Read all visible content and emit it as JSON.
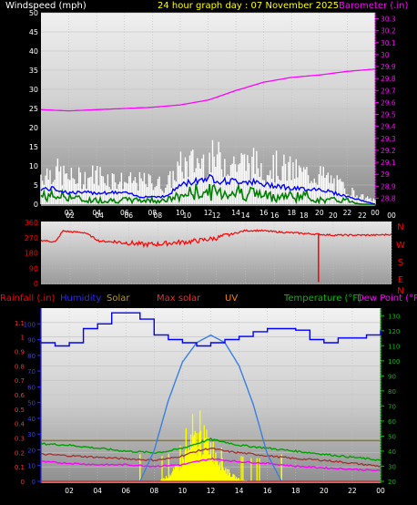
{
  "panel1": {
    "left_label": "Windspeed (mph)",
    "title": "24 hour graph day : 07 November 2025",
    "right_label": "Barometer (.in)",
    "left_ticks": [
      "0",
      "5",
      "10",
      "15",
      "20",
      "25",
      "30",
      "35",
      "40",
      "45",
      "50"
    ],
    "right_ticks": [
      "28.8",
      "28.9",
      "29",
      "29.1",
      "29.2",
      "29.3",
      "29.4",
      "29.5",
      "29.6",
      "29.7",
      "29.8",
      "29.9",
      "30",
      "30.1",
      "30.2",
      "30.3"
    ],
    "x_ticks": [
      "02",
      "04",
      "06",
      "08",
      "10",
      "12",
      "14",
      "16",
      "18",
      "20",
      "22",
      "00"
    ]
  },
  "panel2": {
    "left_ticks": [
      "0",
      "90",
      "180",
      "270",
      "360"
    ],
    "x_ticks": [
      "02",
      "04",
      "06",
      "08",
      "10",
      "12",
      "14",
      "16",
      "18",
      "20",
      "22",
      "00"
    ],
    "compass": [
      "N",
      "W",
      "S",
      "E",
      "N"
    ]
  },
  "panel3": {
    "labels": [
      "Rainfall (.in)",
      "Humidity",
      "Solar",
      "Max solar",
      "UV",
      "Temperature (°F)",
      "Dew Point (°F"
    ],
    "rain_ticks": [
      "0",
      "0.1",
      "0.2",
      "0.3",
      "0.4",
      "0.5",
      "0.6",
      "0.7",
      "0.8",
      "0.9",
      "1",
      "1.1"
    ],
    "hum_ticks": [
      "0",
      "10",
      "20",
      "30",
      "40",
      "50",
      "60",
      "70",
      "80",
      "90",
      "100"
    ],
    "temp_ticks": [
      "20",
      "30",
      "40",
      "50",
      "60",
      "70",
      "80",
      "90",
      "100",
      "110",
      "120",
      "130"
    ],
    "x_ticks": [
      "02",
      "04",
      "06",
      "08",
      "10",
      "12",
      "14",
      "16",
      "18",
      "20",
      "22",
      "00"
    ]
  },
  "colors": {
    "wind_gust": "#ffffff",
    "wind_avg": "#0000ff",
    "wind_speed": "#008000",
    "barometer": "#ff00ff",
    "direction": "#ff0000",
    "humidity": "#0000ff",
    "solar": "#ffff00",
    "max_solar": "#3a7fe0",
    "temperature": "#00a000",
    "dew_point": "#ff00ff",
    "uv": "#ff8000"
  },
  "chart_data": [
    {
      "type": "line",
      "title": "24 hour graph day : 07 November 2025",
      "ylabel": "Windspeed (mph)",
      "y2label": "Barometer (.in)",
      "ylim": [
        0,
        50
      ],
      "y2lim": [
        28.75,
        30.35
      ],
      "xlim": [
        0,
        24
      ],
      "x_tick_labels": [
        "02",
        "04",
        "06",
        "08",
        "10",
        "12",
        "14",
        "16",
        "18",
        "20",
        "22",
        "00"
      ],
      "series": [
        {
          "x": [
            0,
            1,
            2,
            3,
            4,
            5,
            6,
            7,
            8,
            9,
            10,
            11,
            12,
            13,
            14,
            15,
            16,
            17,
            18,
            19,
            20,
            21,
            22,
            23,
            24
          ],
          "values": [
            8,
            9,
            7,
            7,
            8,
            7,
            6,
            6,
            6,
            5,
            10,
            11,
            12,
            12,
            11,
            11,
            10,
            10,
            9,
            8,
            8,
            6,
            4,
            2,
            1
          ]
        },
        {
          "x": [
            0,
            1,
            2,
            3,
            4,
            5,
            6,
            7,
            8,
            9,
            10,
            11,
            12,
            13,
            14,
            15,
            16,
            17,
            18,
            19,
            20,
            21,
            22,
            23,
            24
          ],
          "values": [
            4,
            4,
            3,
            3,
            3,
            3,
            3,
            2,
            2,
            2,
            5,
            6,
            7,
            6,
            6,
            6,
            5,
            5,
            4,
            4,
            4,
            3,
            2,
            1,
            0
          ]
        },
        {
          "x": [
            0,
            1,
            2,
            3,
            4,
            5,
            6,
            7,
            8,
            9,
            10,
            11,
            12,
            13,
            14,
            15,
            16,
            17,
            18,
            19,
            20,
            21,
            22,
            23,
            24
          ],
          "values": [
            2,
            2,
            2,
            1,
            1,
            1,
            1,
            1,
            1,
            1,
            2,
            3,
            3,
            3,
            3,
            3,
            2,
            2,
            2,
            2,
            1,
            1,
            1,
            0,
            0
          ]
        },
        {
          "axis": "y2",
          "x": [
            0,
            2,
            4,
            6,
            8,
            10,
            12,
            14,
            16,
            18,
            20,
            22,
            24
          ],
          "values": [
            29.54,
            29.53,
            29.54,
            29.55,
            29.56,
            29.58,
            29.62,
            29.7,
            29.77,
            29.81,
            29.83,
            29.86,
            29.88
          ]
        }
      ]
    },
    {
      "type": "line",
      "ylim": [
        0,
        360
      ],
      "xlim": [
        0,
        24
      ],
      "series": [
        {
          "x": [
            0,
            1,
            1.5,
            2,
            3,
            4,
            5,
            6,
            7,
            8,
            9,
            10,
            11,
            12,
            13,
            14,
            15,
            16,
            17,
            18,
            19,
            20,
            21,
            22,
            23,
            24
          ],
          "values": [
            255,
            245,
            310,
            305,
            300,
            250,
            245,
            240,
            230,
            232,
            240,
            245,
            255,
            268,
            290,
            312,
            312,
            305,
            300,
            295,
            290,
            285,
            285,
            285,
            285,
            290
          ]
        }
      ]
    },
    {
      "type": "line",
      "ylabel": "Rainfall (.in)",
      "ylim": [
        0,
        1.2
      ],
      "y2lim": [
        20,
        135
      ],
      "xlim": [
        0,
        24
      ],
      "series": [
        {
          "axis": "humidity",
          "x": [
            0,
            1,
            2,
            3,
            4,
            5,
            6,
            7,
            8,
            9,
            10,
            11,
            12,
            13,
            14,
            15,
            16,
            17,
            18,
            19,
            20,
            21,
            22,
            23,
            24
          ],
          "values": [
            88,
            86,
            88,
            97,
            100,
            107,
            107,
            103,
            93,
            90,
            88,
            86,
            88,
            90,
            92,
            95,
            97,
            97,
            96,
            90,
            88,
            91,
            91,
            93,
            96
          ]
        },
        {
          "axis": "temperature",
          "x": [
            0,
            2,
            4,
            6,
            8,
            9,
            10,
            11,
            12,
            13,
            14,
            16,
            18,
            20,
            22,
            24
          ],
          "values": [
            45,
            44,
            42,
            40,
            39,
            40,
            42,
            45,
            48,
            46,
            44,
            42,
            40,
            38,
            36,
            34
          ]
        },
        {
          "axis": "temperature",
          "x": [
            0,
            2,
            4,
            6,
            8,
            9,
            10,
            11,
            12,
            13,
            14,
            16,
            18,
            20,
            22,
            24
          ],
          "values": [
            38,
            37,
            36,
            35,
            34,
            35,
            37,
            40,
            42,
            40,
            39,
            37,
            35,
            34,
            32,
            30
          ]
        },
        {
          "axis": "temperature",
          "x": [
            0,
            2,
            4,
            6,
            8,
            10,
            12,
            14,
            16,
            18,
            20,
            22,
            24
          ],
          "values": [
            33,
            32,
            31,
            31,
            30,
            31,
            35,
            33,
            32,
            30,
            29,
            28,
            27
          ]
        },
        {
          "axis": "max_solar",
          "x": [
            7,
            8,
            9,
            10,
            11,
            12,
            13,
            14,
            15,
            16,
            17
          ],
          "values": [
            0,
            80,
            210,
            310,
            360,
            380,
            360,
            300,
            200,
            70,
            0
          ]
        }
      ]
    }
  ]
}
